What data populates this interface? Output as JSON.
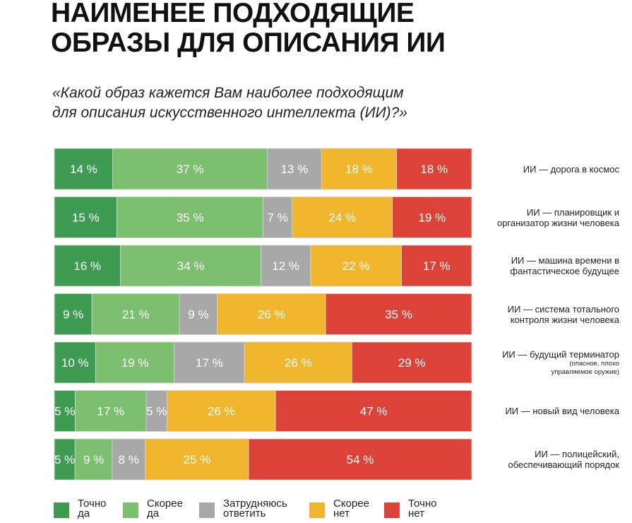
{
  "title": "НАИМЕНЕЕ ПОДХОДЯЩИЕ\nОБРАЗЫ ДЛЯ ОПИСАНИЯ ИИ",
  "subtitle": "«Какой образ кажется Вам наиболее подходящим\nдля описания искусственного интеллекта (ИИ)?»",
  "chart_data": {
    "type": "bar",
    "orientation": "horizontal",
    "stacked": true,
    "categories": [
      {
        "label": "ИИ — дорога в космос",
        "note": ""
      },
      {
        "label": "ИИ — планировщик и\nорганизатор жизни человека",
        "note": ""
      },
      {
        "label": "ИИ — машина времени в\nфантастическое будущее",
        "note": ""
      },
      {
        "label": "ИИ — система тотального\nконтроля жизни человека",
        "note": ""
      },
      {
        "label": "ИИ — будущий терминатор",
        "note": "(опасное, плохо\nуправляемое оружие)"
      },
      {
        "label": "ИИ — новый вид человека",
        "note": ""
      },
      {
        "label": "ИИ — полицейский,\nобеспечивающий порядок",
        "note": ""
      }
    ],
    "series": [
      {
        "name": "Точно\nда",
        "color": "#3d9b52",
        "values": [
          14,
          15,
          16,
          9,
          10,
          5,
          5
        ]
      },
      {
        "name": "Скорее\nда",
        "color": "#7cc06f",
        "values": [
          37,
          35,
          34,
          21,
          19,
          17,
          9
        ]
      },
      {
        "name": "Затрудняюсь\nответить",
        "color": "#a8a8a8",
        "values": [
          13,
          7,
          12,
          9,
          17,
          5,
          8
        ]
      },
      {
        "name": "Скорее\nнет",
        "color": "#efb62e",
        "values": [
          18,
          24,
          22,
          26,
          26,
          26,
          25
        ]
      },
      {
        "name": "Точно\nнет",
        "color": "#dc4238",
        "values": [
          18,
          19,
          17,
          35,
          29,
          47,
          54
        ]
      }
    ],
    "value_suffix": " %",
    "legend_position": "bottom",
    "grid": false
  }
}
